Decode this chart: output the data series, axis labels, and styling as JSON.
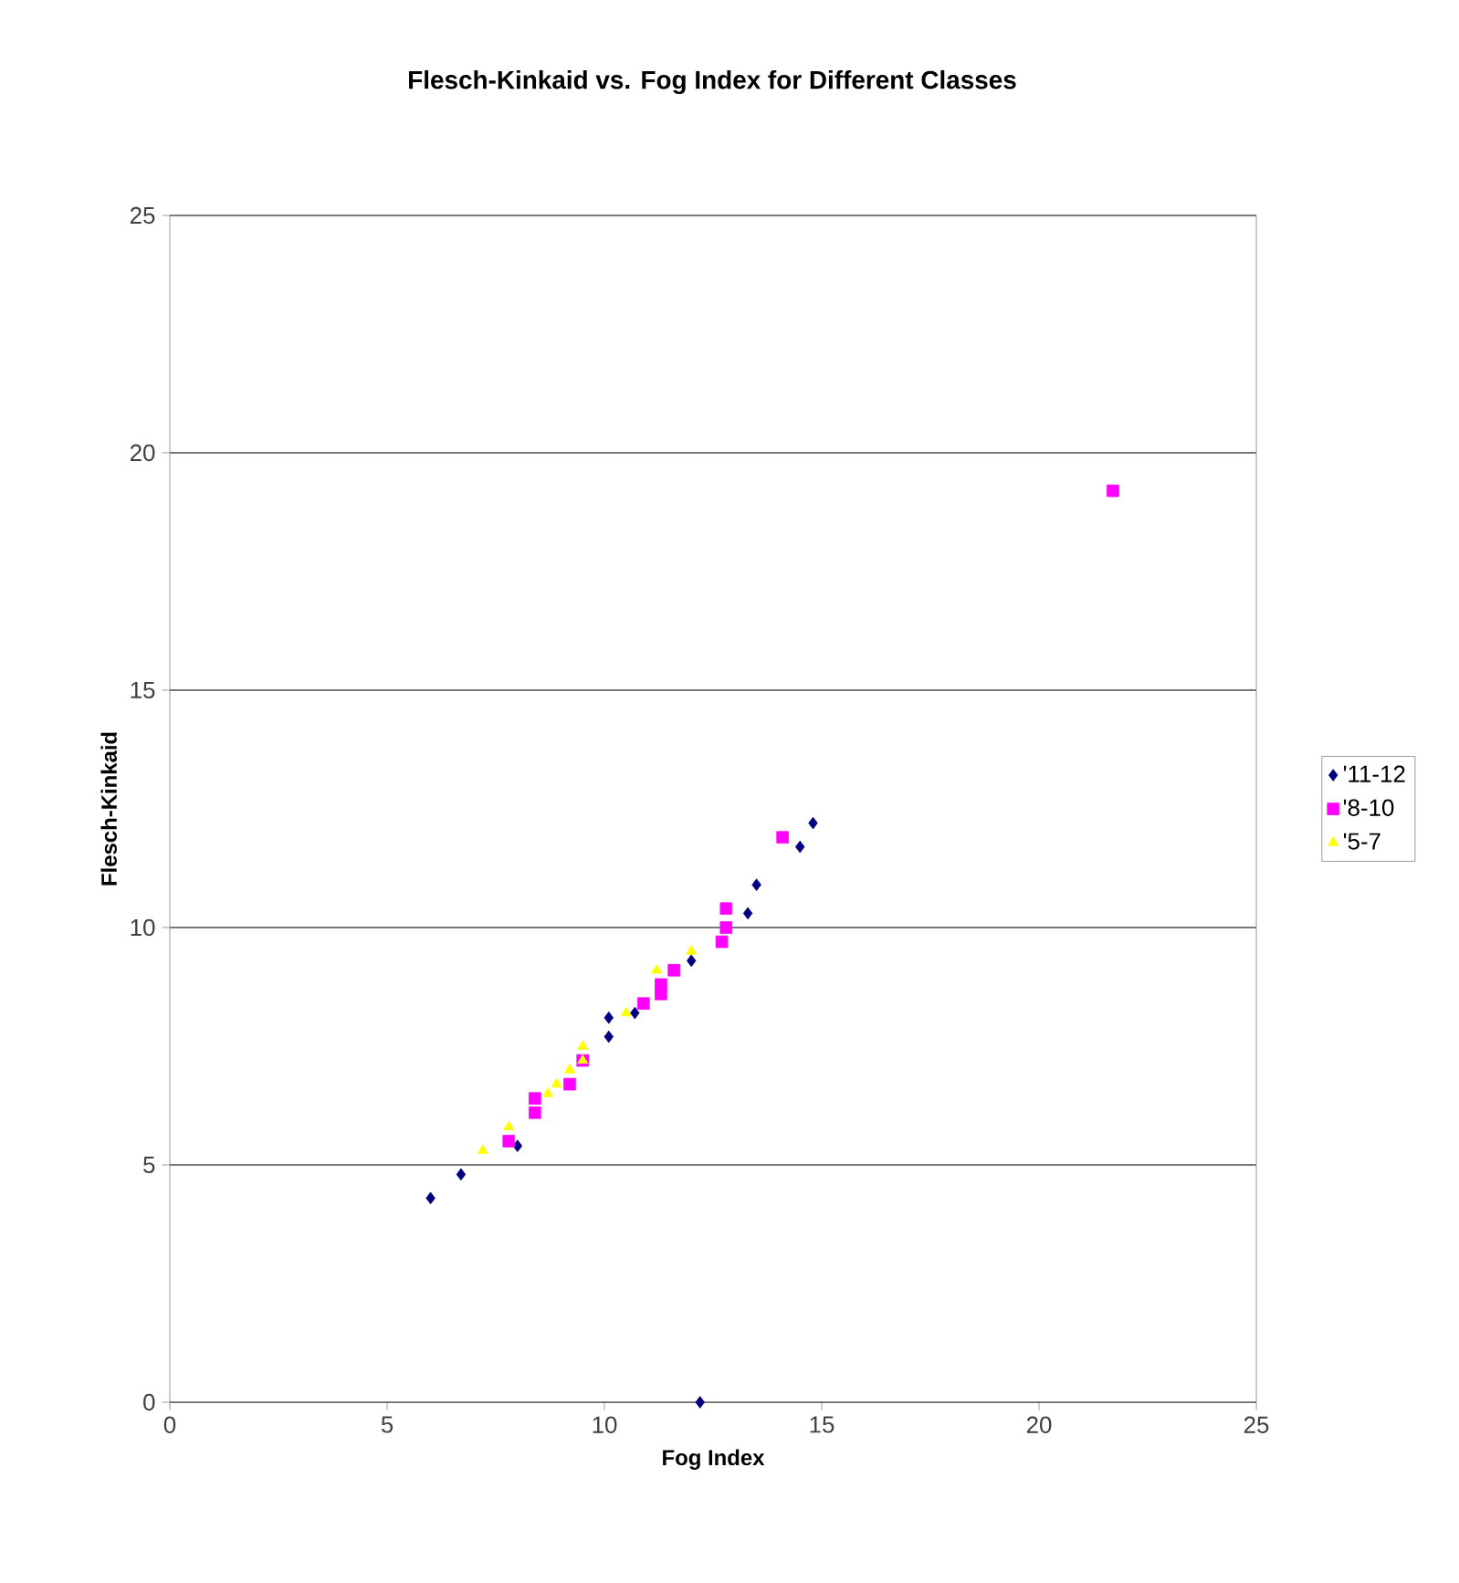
{
  "chart_data": {
    "type": "scatter",
    "title": "Flesch-Kinkaid vs. Fog Index for Different Classes",
    "xlabel": "Fog Index",
    "ylabel": "Flesch-Kinkaid",
    "xlim": [
      0,
      25
    ],
    "ylim": [
      0,
      25
    ],
    "xticks": [
      0,
      5,
      10,
      15,
      20,
      25
    ],
    "yticks": [
      0,
      5,
      10,
      15,
      20,
      25
    ],
    "grid": "y",
    "legend": "right",
    "series": [
      {
        "name": "'11-12",
        "color": "#000080",
        "marker": "diamond",
        "x": [
          6.0,
          6.7,
          8.0,
          10.1,
          10.1,
          10.7,
          12.0,
          13.3,
          13.5,
          14.5,
          14.8,
          12.2
        ],
        "values": [
          4.3,
          4.8,
          5.4,
          8.1,
          7.7,
          8.2,
          9.3,
          10.3,
          10.9,
          11.7,
          12.2,
          0.0
        ]
      },
      {
        "name": "'8-10",
        "color": "#ff00ff",
        "marker": "square",
        "x": [
          7.8,
          8.4,
          8.4,
          9.2,
          9.5,
          10.9,
          11.3,
          11.3,
          11.6,
          12.7,
          12.8,
          12.8,
          14.1,
          21.7
        ],
        "values": [
          5.5,
          6.4,
          6.1,
          6.7,
          7.2,
          8.4,
          8.8,
          8.6,
          9.1,
          9.7,
          10.0,
          10.4,
          11.9,
          19.2
        ]
      },
      {
        "name": "'5-7",
        "color": "#ffff00",
        "marker": "triangle",
        "x": [
          7.2,
          7.8,
          8.7,
          8.9,
          9.2,
          9.5,
          9.5,
          10.5,
          11.2,
          12.0
        ],
        "values": [
          5.3,
          5.8,
          6.5,
          6.7,
          7.0,
          7.5,
          7.2,
          8.2,
          9.1,
          9.5
        ]
      }
    ]
  }
}
